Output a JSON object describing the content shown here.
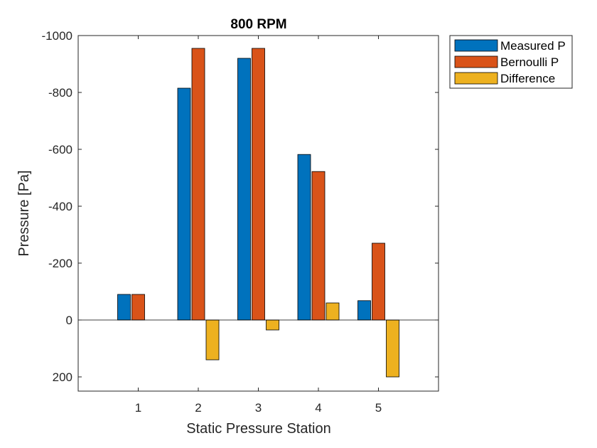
{
  "chart_data": {
    "type": "bar",
    "title": "800 RPM",
    "xlabel": "Static Pressure Station",
    "ylabel": "Pressure [Pa]",
    "categories": [
      "1",
      "2",
      "3",
      "4",
      "5"
    ],
    "series": [
      {
        "name": "Measured P",
        "color": "#0072BD",
        "values": [
          -90,
          -815,
          -920,
          -582,
          -68
        ]
      },
      {
        "name": "Bernoulli P",
        "color": "#D95319",
        "values": [
          -90,
          -955,
          -955,
          -522,
          -270
        ]
      },
      {
        "name": "Difference",
        "color": "#EDB120",
        "values": [
          0,
          140,
          35,
          -60,
          200
        ]
      }
    ],
    "ylim": [
      -1000,
      250
    ],
    "y_reversed": true,
    "yticks": [
      -1000,
      -800,
      -600,
      -400,
      -200,
      0,
      200
    ],
    "ytick_labels": [
      "-1000",
      "-800",
      "-600",
      "-400",
      "-200",
      "0",
      "200"
    ],
    "grid": false,
    "legend_position": "outside-top-right"
  }
}
